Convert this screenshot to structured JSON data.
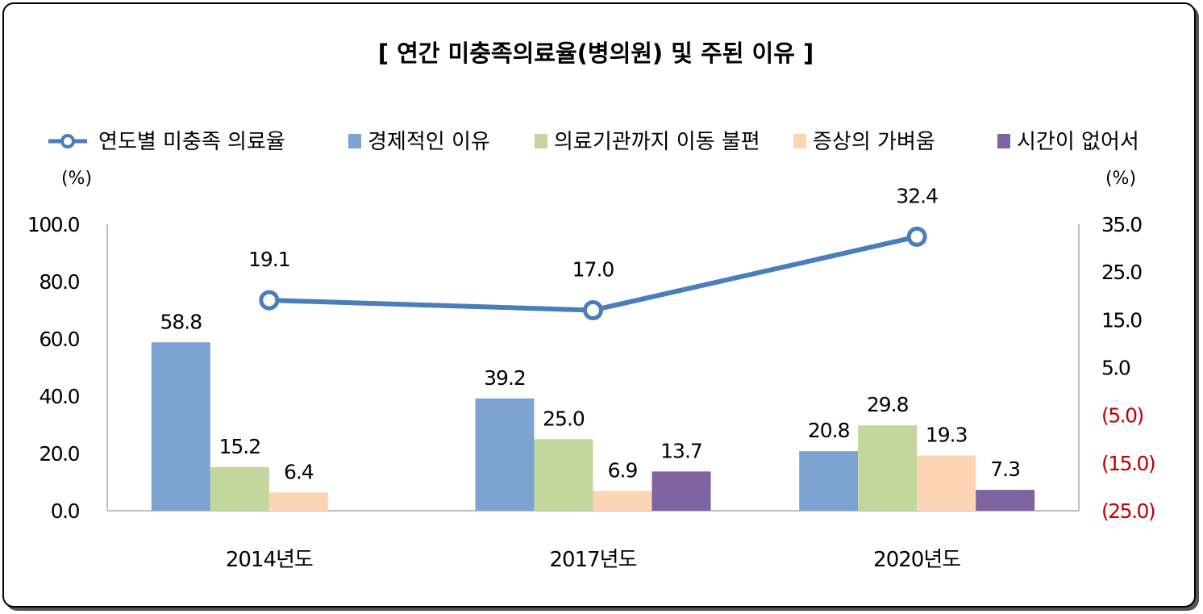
{
  "chart_data": {
    "type": "bar",
    "title": "[ 연간 미충족의료율(병의원) 및 주된 이유 ]",
    "categories": [
      "2014년도",
      "2017년도",
      "2020년도"
    ],
    "series": [
      {
        "name": "경제적인 이유",
        "values": [
          58.8,
          39.2,
          20.8
        ],
        "color": "#7da3d2"
      },
      {
        "name": "의료기관까지 이동 불편",
        "values": [
          15.2,
          25.0,
          29.8
        ],
        "color": "#c3d69b"
      },
      {
        "name": "증상의 가벼움",
        "values": [
          6.4,
          6.9,
          19.3
        ],
        "color": "#fcd5b4"
      },
      {
        "name": "시간이 없어서",
        "values": [
          null,
          13.7,
          7.3
        ],
        "color": "#8064a2"
      }
    ],
    "line_series": {
      "name": "연도별 미충족 의료율",
      "values": [
        19.1,
        17.0,
        32.4
      ],
      "color": "#4a7ebb",
      "axis": "right"
    },
    "y_left": {
      "unit": "(%)",
      "ylim": [
        0,
        100
      ],
      "ticks": [
        "0.0",
        "20.0",
        "40.0",
        "60.0",
        "80.0",
        "100.0"
      ]
    },
    "y_right": {
      "unit": "(%)",
      "ylim": [
        -25,
        35
      ],
      "ticks": [
        "(25.0)",
        "(15.0)",
        "(5.0)",
        "5.0",
        "15.0",
        "25.0",
        "35.0"
      ],
      "negative_color": "#c00000"
    },
    "legend_position": "top",
    "grid": false
  }
}
